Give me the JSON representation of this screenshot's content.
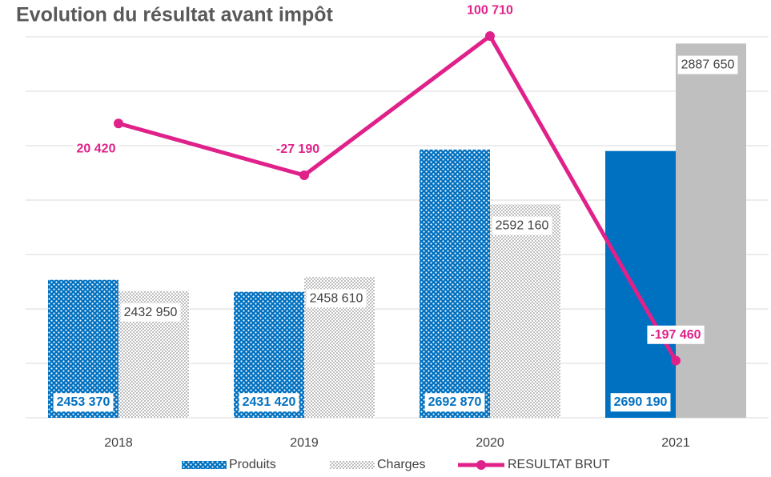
{
  "chart_data": {
    "type": "bar",
    "title": "Evolution du résultat avant impôt",
    "categories": [
      "2018",
      "2019",
      "2020",
      "2021"
    ],
    "ylim": [
      2200000,
      2900000
    ],
    "yticks": [
      2200000,
      2300000,
      2400000,
      2500000,
      2600000,
      2700000,
      2800000,
      2900000
    ],
    "y2lim": [
      -250000,
      100000
    ],
    "grid": true,
    "legend": "bottom",
    "series": [
      {
        "name": "Produits",
        "type": "bar",
        "color": "#0070c0",
        "patterned": [
          true,
          true,
          true,
          false
        ],
        "values": [
          2453370,
          2431420,
          2692870,
          2690190
        ],
        "value_labels": [
          "2453 370",
          "2431 420",
          "2692 870",
          "2690 190"
        ]
      },
      {
        "name": "Charges",
        "type": "bar",
        "color": "#bfbfbf",
        "patterned": [
          true,
          true,
          true,
          false
        ],
        "values": [
          2432950,
          2458610,
          2592160,
          2887650
        ],
        "value_labels": [
          "2432 950",
          "2458 610",
          "2592 160",
          "2887 650"
        ]
      },
      {
        "name": "RESULTAT BRUT",
        "type": "line",
        "axis": "y2",
        "color": "#e0218a",
        "values": [
          20420,
          -27190,
          100710,
          -197460
        ],
        "value_labels": [
          "20 420",
          "-27 190",
          "100 710",
          "-197 460"
        ]
      }
    ]
  }
}
